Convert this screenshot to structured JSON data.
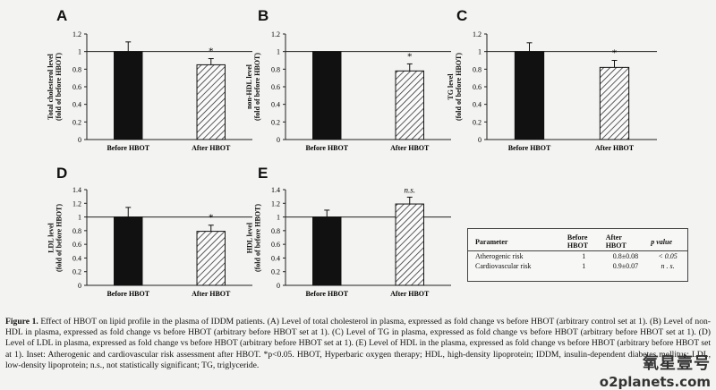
{
  "chart_data": [
    {
      "id": "A",
      "type": "bar",
      "ylabel": "Total cholesterol level\n(fold of before HBOT)",
      "categories": [
        "Before HBOT",
        "After HBOT"
      ],
      "values": [
        1.0,
        0.85
      ],
      "errors": [
        0.11,
        0.07
      ],
      "annotation": "*",
      "ylim": [
        0,
        1.2
      ],
      "yticks": [
        "0",
        "0.2",
        "0.4",
        "0.6",
        "0.8",
        "1",
        "1.2"
      ]
    },
    {
      "id": "B",
      "type": "bar",
      "ylabel": "non-HDL level\n(fold of before HBOT)",
      "categories": [
        "Before HBOT",
        "After HBOT"
      ],
      "values": [
        1.0,
        0.78
      ],
      "errors": [
        0.0,
        0.08
      ],
      "annotation": "*",
      "ylim": [
        0,
        1.2
      ],
      "yticks": [
        "0",
        "0.2",
        "0.4",
        "0.6",
        "0.8",
        "1",
        "1.2"
      ]
    },
    {
      "id": "C",
      "type": "bar",
      "ylabel": "TG level\n(fold of before HBOT)",
      "categories": [
        "Before HBOT",
        "After HBOT"
      ],
      "values": [
        1.0,
        0.82
      ],
      "errors": [
        0.1,
        0.08
      ],
      "annotation": "*",
      "ylim": [
        0,
        1.2
      ],
      "yticks": [
        "0",
        "0.2",
        "0.4",
        "0.6",
        "0.8",
        "1",
        "1.2"
      ]
    },
    {
      "id": "D",
      "type": "bar",
      "ylabel": "LDL level\n(fold of before HBOT)",
      "categories": [
        "Before HBOT",
        "After HBOT"
      ],
      "values": [
        1.0,
        0.79
      ],
      "errors": [
        0.14,
        0.09
      ],
      "annotation": "*",
      "ylim": [
        0,
        1.4
      ],
      "yticks": [
        "0",
        "0.2",
        "0.4",
        "0.6",
        "0.8",
        "1",
        "1.2",
        "1.4"
      ]
    },
    {
      "id": "E",
      "type": "bar",
      "ylabel": "HDL level\n(fold of before HBOT)",
      "categories": [
        "Before HBOT",
        "After HBOT"
      ],
      "values": [
        1.0,
        1.19
      ],
      "errors": [
        0.1,
        0.1
      ],
      "annotation": "n.s.",
      "ylim": [
        0,
        1.4
      ],
      "yticks": [
        "0",
        "0.2",
        "0.4",
        "0.6",
        "0.8",
        "1",
        "1.2",
        "1.4"
      ]
    }
  ],
  "inset": {
    "headers": [
      "Parameter",
      "Before\nHBOT",
      "After\nHBOT",
      "p value"
    ],
    "rows": [
      [
        "Atherogenic risk",
        "1",
        "0.8±0.08",
        "< 0.05"
      ],
      [
        "Cardiovascular risk",
        "1",
        "0.9±0.07",
        "n . s."
      ]
    ]
  },
  "caption": {
    "label": "Figure 1.",
    "text": " Effect of HBOT on lipid profile in the plasma of IDDM patients. (A) Level of total cholesterol in plasma, expressed as fold change vs before HBOT (arbitrary control set at 1). (B) Level of non-HDL in plasma, expressed as fold change vs before HBOT (arbitrary before HBOT set at 1). (C) Level of TG in plasma, expressed as fold change vs before HBOT (arbitrary before HBOT set at 1). (D) Level of LDL in plasma, expressed as fold change vs before HBOT (arbitrary before HBOT set at 1). (E) Level of HDL in the plasma, expressed as fold change vs before HBOT (arbitrary before HBOT set at 1). Inset: Atherogenic and cardiovascular risk assessment after HBOT. *p<0.05. HBOT, Hyperbaric oxygen therapy; HDL, high-density lipoprotein; IDDM, insulin-dependent diabetes mellitus; LDL, low-density lipoprotein; n.s., not statistically significant; TG, triglyceride."
  },
  "watermark": {
    "line1": "氧星壹号",
    "line2": "o2planets.com"
  },
  "colors": {
    "before_bar": "#111111",
    "hatch": "#333333",
    "refline": "#222222"
  }
}
